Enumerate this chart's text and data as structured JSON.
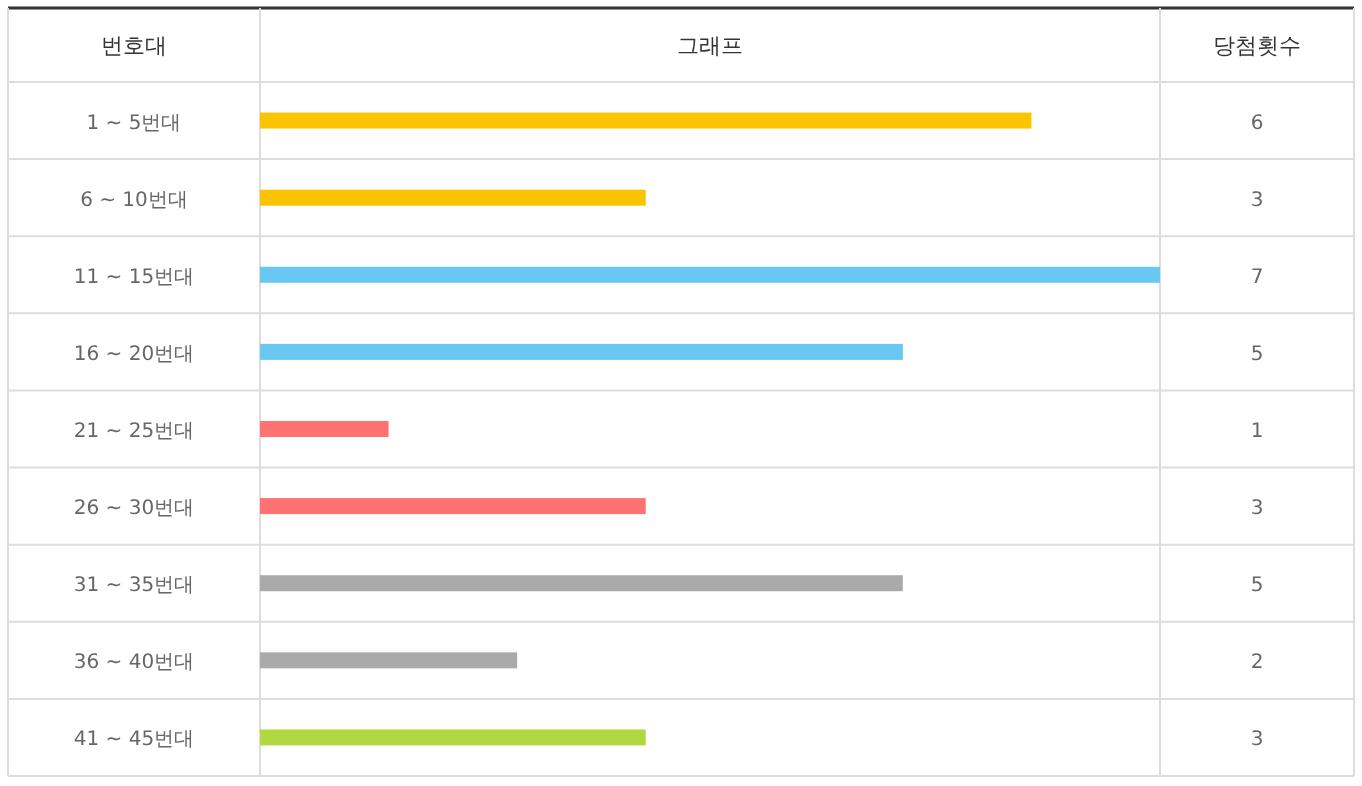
{
  "chart_data": {
    "type": "bar",
    "orientation": "horizontal",
    "title": "그래프",
    "ylabel": "번호대",
    "annotations": [
      "당첨횟수"
    ],
    "categories": [
      "1 ~ 5번대",
      "6 ~ 10번대",
      "11 ~ 15번대",
      "16 ~ 20번대",
      "21 ~ 25번대",
      "26 ~ 30번대",
      "31 ~ 35번대",
      "36 ~ 40번대",
      "41 ~ 45번대"
    ],
    "values": [
      6,
      3,
      7,
      5,
      1,
      3,
      5,
      2,
      3
    ],
    "colors": [
      "#fbc400",
      "#fbc400",
      "#69c8f2",
      "#69c8f2",
      "#ff7272",
      "#ff7272",
      "#aaaaaa",
      "#aaaaaa",
      "#b0d840"
    ],
    "xlim": [
      0,
      7
    ],
    "data_labels": true
  }
}
